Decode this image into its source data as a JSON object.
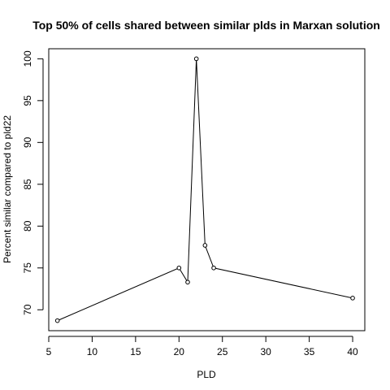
{
  "chart_data": {
    "type": "line",
    "title": "Top 50% of cells shared between similar plds in Marxan solution",
    "xlabel": "PLD",
    "ylabel": "Percent similar compared to pld22",
    "series": [
      {
        "x": [
          6,
          20,
          21,
          22,
          23,
          24,
          40
        ],
        "y": [
          68.7,
          75.0,
          73.3,
          100.0,
          77.7,
          75.0,
          71.4
        ]
      }
    ],
    "xlim": [
      5,
      41.4
    ],
    "ylim": [
      67.5,
      101.2
    ],
    "xticks": [
      5,
      10,
      15,
      20,
      25,
      30,
      35,
      40
    ],
    "yticks": [
      70,
      75,
      80,
      85,
      90,
      95,
      100
    ],
    "line_color": "#000000",
    "marker": "open-circle",
    "grid": false,
    "legend": "none"
  }
}
